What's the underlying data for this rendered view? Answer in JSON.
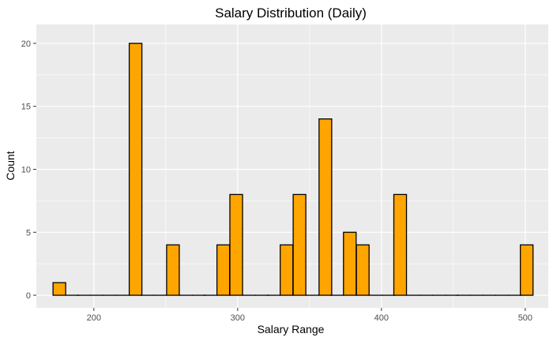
{
  "chart_data": {
    "type": "bar",
    "title": "Salary Distribution (Daily)",
    "xlabel": "Salary Range",
    "ylabel": "Count",
    "xlim": [
      160,
      516
    ],
    "ylim": [
      -1,
      21.5
    ],
    "bin_width": 8.8,
    "x_ticks": [
      200,
      300,
      400,
      500
    ],
    "y_ticks": [
      0,
      5,
      10,
      15,
      20
    ],
    "x": [
      176,
      185,
      193,
      202,
      211,
      220,
      229,
      237,
      246,
      255,
      264,
      273,
      281,
      290,
      299,
      308,
      317,
      325,
      334,
      343,
      352,
      361,
      369,
      378,
      387,
      396,
      405,
      413,
      422,
      431,
      440,
      449,
      457,
      466,
      475,
      484,
      493,
      501
    ],
    "values": [
      1,
      0,
      0,
      0,
      0,
      0,
      20,
      0,
      0,
      4,
      0,
      0,
      0,
      4,
      8,
      0,
      0,
      0,
      4,
      8,
      0,
      14,
      0,
      5,
      4,
      0,
      0,
      8,
      0,
      0,
      0,
      0,
      0,
      0,
      0,
      0,
      0,
      4
    ],
    "grid": true,
    "legend": "none",
    "colors": {
      "bar_fill": "#FFA500",
      "bar_outline": "#000000",
      "panel_background": "#EBEBEB",
      "grid": "#FFFFFF",
      "tick_text": "#4D4D4D"
    }
  }
}
